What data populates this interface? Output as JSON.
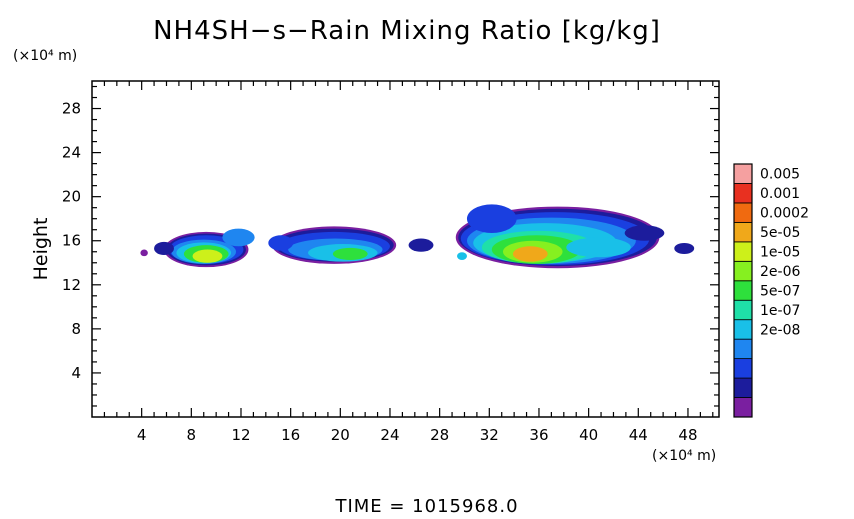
{
  "chart_data": {
    "type": "heatmap",
    "title": "NH4SH−s−Rain Mixing Ratio [kg/kg]",
    "xlabel": "",
    "ylabel": "Height",
    "x_unit": "(×10⁴ m)",
    "y_unit": "(×10⁴ m)",
    "xlim": [
      0,
      50.5
    ],
    "ylim": [
      0,
      30.5
    ],
    "x_ticks": [
      4,
      8,
      12,
      16,
      20,
      24,
      28,
      32,
      36,
      40,
      44,
      48
    ],
    "y_ticks": [
      4,
      8,
      12,
      16,
      20,
      24,
      28
    ],
    "colorbar": {
      "labels": [
        "0.005",
        "0.001",
        "0.0002",
        "5e-05",
        "1e-05",
        "2e-06",
        "5e-07",
        "1e-07",
        "2e-08"
      ],
      "colors": [
        "#7a1fa0",
        "#1c1c9c",
        "#1a3fe0",
        "#1f86f0",
        "#19c0e8",
        "#1fe0a8",
        "#2ee03c",
        "#86f020",
        "#cdf01a",
        "#f0a81a",
        "#f06a10",
        "#e83020",
        "#f5a0a0"
      ]
    },
    "cloud_regions": [
      {
        "region": "left",
        "x_range": [
          6,
          12
        ],
        "y_range": [
          13.5,
          17
        ],
        "peak_level": "5e-05"
      },
      {
        "region": "center",
        "x_range": [
          14,
          27
        ],
        "y_range": [
          14,
          17.5
        ],
        "peak_level": "1e-05"
      },
      {
        "region": "right",
        "x_range": [
          30,
          46
        ],
        "y_range": [
          13.5,
          19.5
        ],
        "peak_level": "0.0002"
      }
    ]
  },
  "footer": {
    "time_label": "TIME  =  1015968.0"
  }
}
